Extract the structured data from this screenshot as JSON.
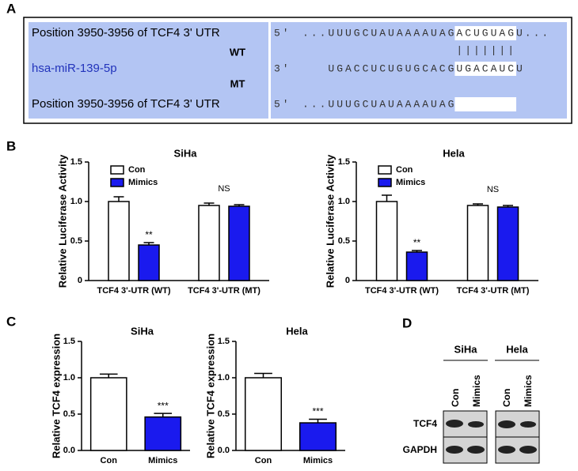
{
  "panel_labels": [
    "A",
    "B",
    "C",
    "D"
  ],
  "panel_a": {
    "target_wt": {
      "name": "Position 3950-3956 of TCF4 3' UTR",
      "end": "5'",
      "seq_before": "...UUUGCUAUAAAAUAG",
      "site": "ACUGUAG",
      "seq_after": "U..."
    },
    "wt_label": "WT",
    "pairing": "|||||||",
    "mirna": {
      "name": "hsa-miR-139-5p",
      "end": "3'",
      "seq_before": "UGACCUCUGUGCACG",
      "site": "UGACAUC",
      "seq_after": "U"
    },
    "mt_label": "MT",
    "target_mt": {
      "name": "Position 3950-3956 of TCF4 3' UTR",
      "end": "5'",
      "seq_before": "...UUUGCUAUAAAAUAG"
    }
  },
  "chart_data": [
    {
      "type": "bar",
      "title": "SiHa",
      "y_label": "Relative Luciferase Activity",
      "categories": [
        "TCF4 3'-UTR (WT)",
        "TCF4 3'-UTR (MT)"
      ],
      "series": [
        {
          "name": "Con",
          "color": "#ffffff",
          "values": [
            1.0,
            0.95
          ],
          "errors": [
            0.06,
            0.03
          ]
        },
        {
          "name": "Mimics",
          "color": "#1a1aee",
          "values": [
            0.45,
            0.94
          ],
          "errors": [
            0.03,
            0.02
          ],
          "labels": [
            "**",
            null
          ]
        }
      ],
      "group_labels": [
        null,
        "NS"
      ],
      "ylim": [
        0,
        1.5
      ],
      "yticks": [
        0,
        0.5,
        {
          "value": 1,
          "label": "1.0"
        },
        1.5
      ],
      "legend": "upper left"
    },
    {
      "type": "bar",
      "title": "Hela",
      "y_label": "Relative Luciferase Activity",
      "categories": [
        "TCF4 3'-UTR (WT)",
        "TCF4 3'-UTR (MT)"
      ],
      "series": [
        {
          "name": "Con",
          "color": "#ffffff",
          "values": [
            1.0,
            0.95
          ],
          "errors": [
            0.08,
            0.02
          ]
        },
        {
          "name": "Mimics",
          "color": "#1a1aee",
          "values": [
            0.36,
            0.93
          ],
          "errors": [
            0.02,
            0.02
          ],
          "labels": [
            "**",
            null
          ]
        }
      ],
      "group_labels": [
        null,
        "NS"
      ],
      "ylim": [
        0,
        1.5
      ],
      "yticks": [
        0,
        0.5,
        {
          "value": 1,
          "label": "1.0"
        },
        1.5
      ],
      "legend": "upper left"
    },
    {
      "type": "bar",
      "title": "SiHa",
      "y_label": "Relative TCF4 expression",
      "categories": [
        "Con",
        "Mimics"
      ],
      "values": [
        1.0,
        0.46
      ],
      "errors": [
        0.05,
        0.05
      ],
      "colors": [
        "#ffffff",
        "#1a1aee"
      ],
      "labels": [
        null,
        "***"
      ],
      "ylim": [
        0,
        1.5
      ],
      "yticks": [
        {
          "value": 0,
          "label": "0.0"
        },
        0.5,
        {
          "value": 1,
          "label": "1.0"
        },
        1.5
      ]
    },
    {
      "type": "bar",
      "title": "Hela",
      "y_label": "Relative TCF4 expression",
      "categories": [
        "Con",
        "Mimics"
      ],
      "values": [
        1.0,
        0.38
      ],
      "errors": [
        0.06,
        0.05
      ],
      "colors": [
        "#ffffff",
        "#1a1aee"
      ],
      "labels": [
        null,
        "***"
      ],
      "ylim": [
        0,
        1.5
      ],
      "yticks": [
        {
          "value": 0,
          "label": "0.0"
        },
        0.5,
        {
          "value": 1,
          "label": "1.0"
        },
        1.5
      ]
    }
  ],
  "panel_d": {
    "cell_lines": [
      "SiHa",
      "Hela"
    ],
    "lanes": [
      "Con",
      "Mimics"
    ],
    "proteins": [
      "TCF4",
      "GAPDH"
    ]
  }
}
